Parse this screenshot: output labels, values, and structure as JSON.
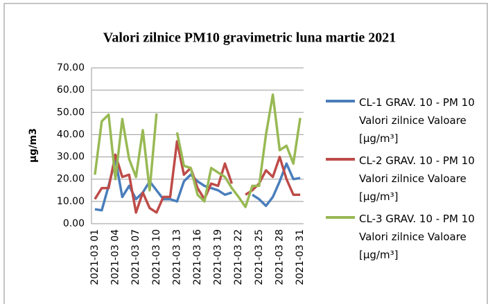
{
  "chart_data": {
    "type": "line",
    "title": "Valori zilnice PM10 gravimetric luna martie 2021",
    "y_label": "µg/m3",
    "categories": [
      "2021-03 01",
      null,
      null,
      "2021-03 04",
      null,
      null,
      "2021-03 07",
      null,
      null,
      "2021-03 10",
      null,
      null,
      "2021-03 13",
      null,
      null,
      "2021-03 16",
      null,
      null,
      "2021-03 19",
      null,
      null,
      "2021-03 22",
      null,
      null,
      "2021-03 25",
      null,
      null,
      "2021-03 28",
      null,
      null,
      "2021-03 31"
    ],
    "series": [
      {
        "name": "CL-1 GRAV. 10 - PM 10 Valori zilnice Valoare [µg/m³]",
        "color": "#4a7ebb",
        "values": [
          6.5,
          6,
          17,
          29,
          12,
          17,
          11,
          14,
          19,
          15,
          11,
          11,
          10,
          19,
          22,
          19,
          17,
          16,
          15,
          13,
          14,
          null,
          null,
          13,
          11,
          8,
          12,
          19,
          27,
          20,
          20.5
        ]
      },
      {
        "name": "CL-2 GRAV. 10 - PM 10 Valori zilnice Valoare [µg/m³]",
        "color": "#be4b48",
        "values": [
          11,
          16,
          16,
          31,
          21,
          22,
          5,
          14,
          7,
          5,
          12,
          12,
          37,
          22,
          25,
          16,
          11,
          18,
          17,
          27,
          18,
          null,
          13,
          15,
          18,
          24,
          21,
          30,
          20,
          13,
          13
        ]
      },
      {
        "name": "CL-3 GRAV. 10 - PM 10 Valori zilnice Valoare [µg/m³]",
        "color": "#98b954",
        "values": [
          22,
          46,
          49,
          20,
          47,
          29,
          21,
          42,
          15,
          49.5,
          null,
          null,
          41,
          26,
          25,
          13,
          10,
          25,
          23,
          21,
          16,
          12,
          7.5,
          17,
          17,
          40,
          58,
          33,
          35,
          27,
          47.5
        ]
      }
    ],
    "ylim": [
      0,
      70
    ],
    "yticks": [
      {
        "value": 0,
        "label": "0.00"
      },
      {
        "value": 10,
        "label": "10.00"
      },
      {
        "value": 20,
        "label": "20.00"
      },
      {
        "value": 30,
        "label": "30.00"
      },
      {
        "value": 40,
        "label": "40.00"
      },
      {
        "value": 50,
        "label": "50.00"
      },
      {
        "value": 60,
        "label": "60.00"
      },
      {
        "value": 70,
        "label": "70.00"
      }
    ],
    "grid": true,
    "legend": "right"
  }
}
